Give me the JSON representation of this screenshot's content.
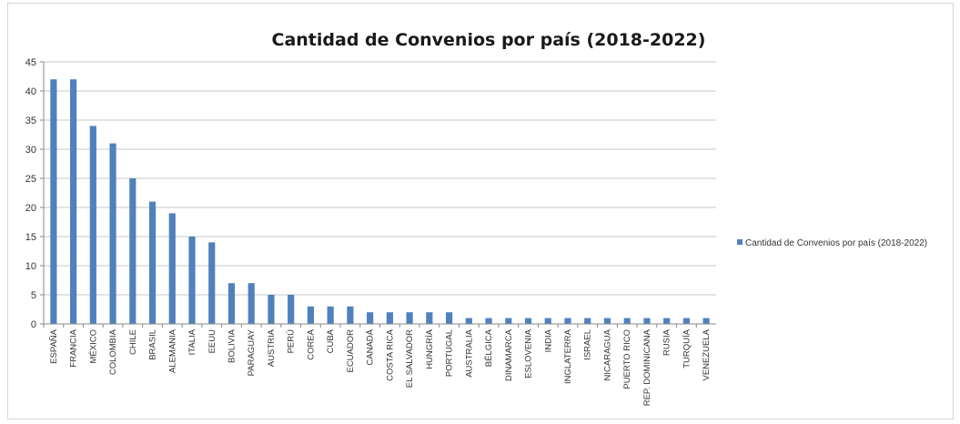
{
  "chart_data": {
    "type": "bar",
    "title": "Cantidad de Convenios por país (2018-2022)",
    "xlabel": "",
    "ylabel": "",
    "ylim": [
      0,
      45
    ],
    "yticks": [
      0,
      5,
      10,
      15,
      20,
      25,
      30,
      35,
      40,
      45
    ],
    "grid": true,
    "legend_position": "right",
    "bar_color": "#4f81bd",
    "categories": [
      "ESPAÑA",
      "FRANCIA",
      "MÉXICO",
      "COLOMBIA",
      "CHILE",
      "BRASIL",
      "ALEMANIA",
      "ITALIA",
      "EEUU",
      "BOLIVIA",
      "PARAGUAY",
      "AUSTRIA",
      "PERÚ",
      "COREA",
      "CUBA",
      "ECUADOR",
      "CANADÁ",
      "COSTA RICA",
      "EL SALVADOR",
      "HUNGRÍA",
      "PORTUGAL",
      "AUSTRALIA",
      "BÉLGICA",
      "DINAMARCA",
      "ESLOVENIA",
      "INDIA",
      "INGLATERRA",
      "ISRAEL",
      "NICARAGUA",
      "PUERTO RICO",
      "REP. DOMINICANA",
      "RUSIA",
      "TURQUÍA",
      "VENEZUELA"
    ],
    "series": [
      {
        "name": "Cantidad de Convenios por país (2018-2022)",
        "values": [
          42,
          42,
          34,
          31,
          25,
          21,
          19,
          15,
          14,
          7,
          7,
          5,
          5,
          3,
          3,
          3,
          2,
          2,
          2,
          2,
          2,
          1,
          1,
          1,
          1,
          1,
          1,
          1,
          1,
          1,
          1,
          1,
          1,
          1
        ]
      }
    ]
  }
}
